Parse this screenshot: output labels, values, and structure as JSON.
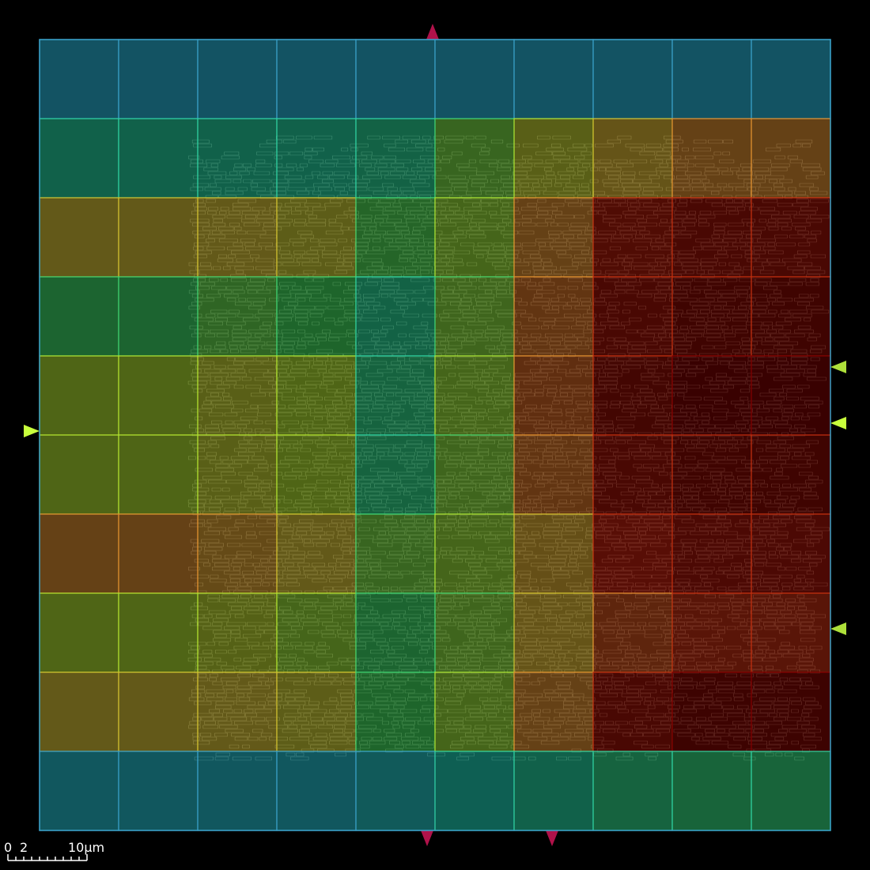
{
  "view": {
    "background": "#000000",
    "grid_rows": 10,
    "grid_cols": 10,
    "tile_opacity": 0.55,
    "cell_fill_opacity": 0.72
  },
  "scale_bar": {
    "label_zero": "0",
    "label_mid": "2",
    "label_max": "10μm",
    "color": "#ffffff"
  },
  "heatmap": {
    "palette_note_colors": {
      "blue": "#1e6a96",
      "teal": "#138670",
      "green": "#2a8c3c",
      "olive": "#6e8c1e",
      "khaki": "#8c7a22",
      "orange": "#8c5a1e",
      "red": "#7a1408",
      "darkred": "#4a0000"
    },
    "values": [
      [
        0.05,
        0.05,
        0.05,
        0.05,
        0.05,
        0.05,
        0.05,
        0.05,
        0.05,
        0.05
      ],
      [
        0.18,
        0.18,
        0.18,
        0.18,
        0.2,
        0.38,
        0.5,
        0.58,
        0.66,
        0.66
      ],
      [
        0.55,
        0.55,
        0.55,
        0.52,
        0.32,
        0.42,
        0.66,
        0.86,
        0.9,
        0.9
      ],
      [
        0.28,
        0.28,
        0.35,
        0.3,
        0.2,
        0.4,
        0.7,
        0.9,
        0.95,
        0.95
      ],
      [
        0.45,
        0.45,
        0.5,
        0.45,
        0.22,
        0.42,
        0.72,
        0.93,
        0.98,
        0.98
      ],
      [
        0.45,
        0.45,
        0.5,
        0.45,
        0.22,
        0.4,
        0.7,
        0.9,
        0.95,
        0.95
      ],
      [
        0.66,
        0.66,
        0.62,
        0.55,
        0.38,
        0.42,
        0.6,
        0.82,
        0.88,
        0.88
      ],
      [
        0.45,
        0.45,
        0.48,
        0.42,
        0.28,
        0.4,
        0.58,
        0.75,
        0.8,
        0.8
      ],
      [
        0.55,
        0.55,
        0.55,
        0.52,
        0.3,
        0.42,
        0.66,
        0.9,
        0.96,
        0.96
      ],
      [
        0.08,
        0.08,
        0.08,
        0.08,
        0.1,
        0.14,
        0.18,
        0.22,
        0.24,
        0.24
      ]
    ]
  },
  "pins": {
    "top": [
      {
        "pos": 0.497,
        "color": "#b0124a"
      }
    ],
    "bottom": [
      {
        "pos": 0.49,
        "color": "#b0124a"
      },
      {
        "pos": 0.648,
        "color": "#b0124a"
      }
    ],
    "left": [
      {
        "pos": 0.495,
        "color": "#c8ff3c"
      }
    ],
    "right": [
      {
        "pos": 0.414,
        "color": "#aee03a"
      },
      {
        "pos": 0.485,
        "color": "#c8ff3c"
      },
      {
        "pos": 0.745,
        "color": "#aee03a"
      }
    ]
  }
}
